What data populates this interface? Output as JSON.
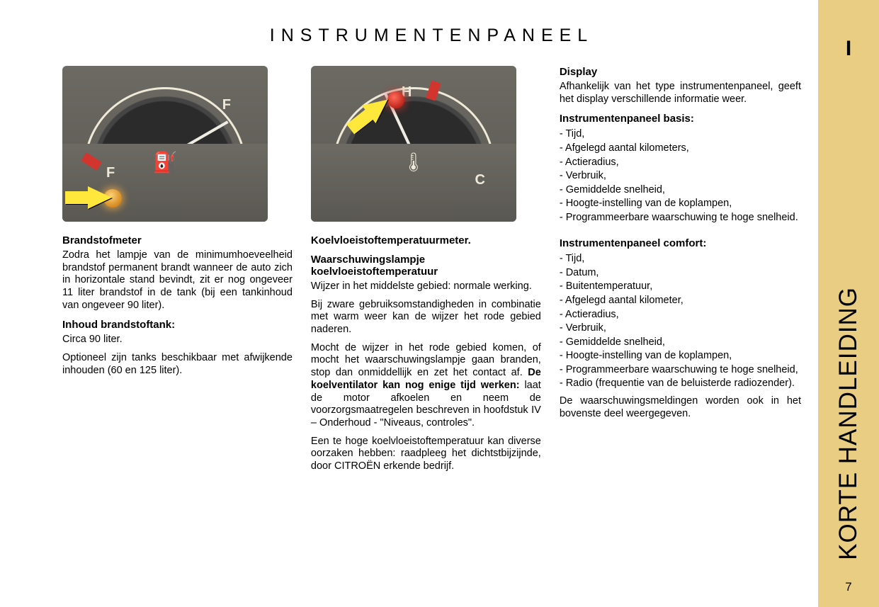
{
  "page": {
    "title": "INSTRUMENTENPANEEL",
    "sidebar_roman": "I",
    "sidebar_label": "KORTE HANDLEIDING",
    "page_number": "7"
  },
  "col1": {
    "gauge": {
      "label_full": "F",
      "label_empty": "F",
      "icon_name": "fuel-pump"
    },
    "heading": "Brandstofmeter",
    "para1": "Zodra het lampje van de minimumhoeveelheid brandstof permanent brandt wanneer de auto zich in horizontale stand bevindt, zit er nog ongeveer 11 liter brandstof in de tank (bij een tankinhoud van ongeveer 90 liter).",
    "sub1": "Inhoud brandstoftank:",
    "para2": "Circa 90 liter.",
    "para3": "Optioneel zijn tanks beschikbaar met afwijkende inhouden (60 en 125 liter)."
  },
  "col2": {
    "gauge": {
      "label_hot": "H",
      "label_cold": "C",
      "icon_name": "temperature"
    },
    "heading": "Koelvloeistoftemperatuurmeter.",
    "sub1": "Waarschuwingslampje koelvloeistoftemperatuur",
    "para1": "Wijzer in het middelste gebied: normale werking.",
    "para2": "Bij zware gebruiksomstandigheden in combinatie met warm weer kan de wijzer het rode gebied naderen.",
    "para3_a": "Mocht de wijzer in het rode gebied komen, of mocht het waarschuwingslampje gaan branden, stop dan onmiddellijk en zet het contact af. ",
    "para3_bold": "De koelventilator kan nog enige tijd werken:",
    "para3_b": " laat de motor afkoelen en neem de voorzorgsmaatregelen beschreven in hoofdstuk IV – Onderhoud - \"Niveaus, controles\".",
    "para4": "Een te hoge koelvloeistoftemperatuur kan diverse oorzaken hebben: raadpleeg het dichtstbijzijnde, door CITROËN erkende bedrijf."
  },
  "col3": {
    "heading": "Display",
    "para1": "Afhankelijk van het type instrumentenpaneel, geeft het display verschillende informatie weer.",
    "sub1": "Instrumentenpaneel basis:",
    "list1": [
      "Tijd,",
      "Afgelegd aantal kilometers,",
      "Actieradius,",
      "Verbruik,",
      "Gemiddelde snelheid,",
      "Hoogte-instelling van de koplampen,",
      "Programmeerbare waarschuwing te hoge snelheid."
    ],
    "sub2": "Instrumentenpaneel comfort:",
    "list2": [
      "Tijd,",
      "Datum,",
      "Buitentemperatuur,",
      "Afgelegd aantal kilometer,",
      "Actieradius,",
      "Verbruik,",
      "Gemiddelde snelheid,",
      "Hoogte-instelling van de koplampen,",
      "Programmeerbare waarschuwing te hoge snelheid,",
      "Radio (frequentie van de beluisterde radiozender)."
    ],
    "para2": "De waarschuwingsmeldingen worden ook in het bovenste deel weergegeven."
  },
  "colors": {
    "sidebar_bg": "#e8cd83",
    "text": "#000000",
    "fig_bg_top": "#6d6a64",
    "fig_bg_bot": "#5a5852",
    "dial_face": "#2b2b2b",
    "scale": "#efe9d7",
    "red": "#d1352d",
    "amber": "#d68a1e",
    "arrow": "#ffe83b"
  }
}
